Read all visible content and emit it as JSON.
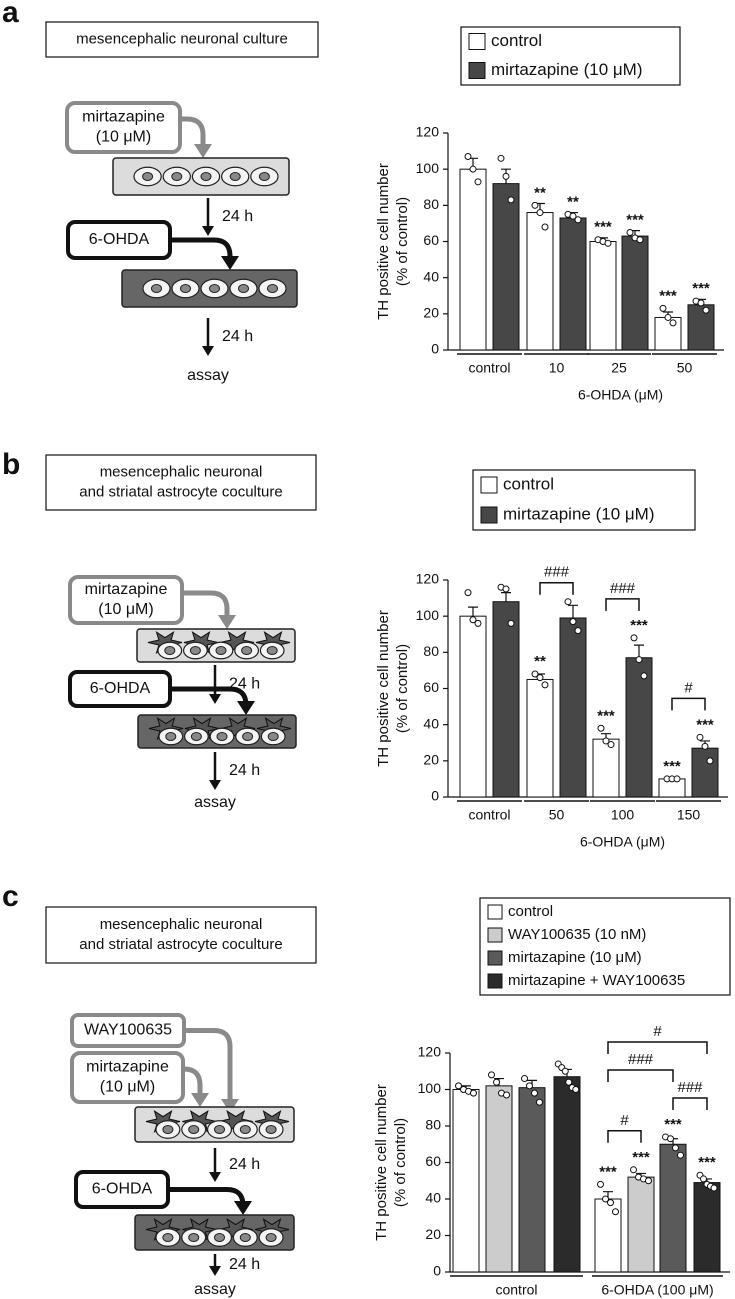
{
  "panels": [
    {
      "letter": "a",
      "culture": [
        "mesencephalic neuronal culture"
      ],
      "drug": [
        "mirtazapine",
        "(10 μM)"
      ],
      "toxin": "6-OHDA",
      "time1": "24 h",
      "time2": "24 h",
      "readout": "assay"
    },
    {
      "letter": "b",
      "culture": [
        "mesencephalic neuronal",
        "and striatal astrocyte coculture"
      ],
      "drug": [
        "mirtazapine",
        "(10 μM)"
      ],
      "toxin": "6-OHDA",
      "time1": "24 h",
      "time2": "24 h",
      "readout": "assay"
    },
    {
      "letter": "c",
      "culture": [
        "mesencephalic neuronal",
        "and striatal astrocyte coculture"
      ],
      "antagonist": "WAY100635",
      "drug": [
        "mirtazapine",
        "(10 μM)"
      ],
      "toxin": "6-OHDA",
      "time1": "24 h",
      "time2": "24 h",
      "readout": "assay"
    }
  ],
  "chart_data": [
    {
      "type": "bar",
      "ylabel": [
        "TH positive cell number",
        "(% of control)"
      ],
      "categories": [
        "control",
        "10",
        "25",
        "50"
      ],
      "group_label": "6-OHDA (μM)",
      "ylim": [
        0,
        120
      ],
      "yticks": [
        0,
        20,
        40,
        60,
        80,
        100,
        120
      ],
      "series": [
        {
          "name": "control",
          "color": "#ffffff",
          "values": [
            100,
            76,
            60,
            18
          ],
          "errors": [
            6,
            5,
            2,
            3
          ],
          "points": [
            [
              107,
              100,
              93
            ],
            [
              80,
              76,
              68
            ],
            [
              61,
              60,
              59
            ],
            [
              23,
              18,
              15
            ]
          ],
          "stars": [
            null,
            "**",
            "***",
            "***"
          ]
        },
        {
          "name": "mirtazapine (10 μM)",
          "color": "#474747",
          "values": [
            92,
            73,
            63,
            25
          ],
          "errors": [
            8,
            3,
            3,
            3
          ],
          "points": [
            [
              106,
              96,
              83
            ],
            [
              75,
              74,
              72
            ],
            [
              65,
              62,
              61
            ],
            [
              27,
              26,
              22
            ]
          ],
          "stars": [
            null,
            "**",
            "***",
            "***"
          ]
        }
      ],
      "brackets": []
    },
    {
      "type": "bar",
      "ylabel": [
        "TH positive cell number",
        "(% of control)"
      ],
      "categories": [
        "control",
        "50",
        "100",
        "150"
      ],
      "group_label": "6-OHDA (μM)",
      "ylim": [
        0,
        120
      ],
      "yticks": [
        0,
        20,
        40,
        60,
        80,
        100,
        120
      ],
      "series": [
        {
          "name": "control",
          "color": "#ffffff",
          "values": [
            100,
            65,
            32,
            10
          ],
          "errors": [
            5,
            3,
            3,
            1
          ],
          "points": [
            [
              113,
              98,
              96
            ],
            [
              68,
              66,
              62
            ],
            [
              38,
              31,
              29
            ],
            [
              10,
              10,
              10
            ]
          ],
          "stars": [
            null,
            "**",
            "***",
            "***"
          ]
        },
        {
          "name": "mirtazapine (10 μM)",
          "color": "#474747",
          "values": [
            108,
            99,
            77,
            27
          ],
          "errors": [
            5,
            7,
            7,
            4
          ],
          "points": [
            [
              116,
              115,
              96
            ],
            [
              108,
              97,
              92
            ],
            [
              88,
              76,
              67
            ],
            [
              33,
              28,
              20
            ]
          ],
          "stars": [
            null,
            null,
            "***",
            "***"
          ]
        }
      ],
      "brackets": [
        {
          "label": "###",
          "category": 1,
          "series": [
            0,
            1
          ]
        },
        {
          "label": "###",
          "category": 2,
          "series": [
            0,
            1
          ]
        },
        {
          "label": "#",
          "category": 3,
          "series": [
            0,
            1
          ]
        }
      ]
    },
    {
      "type": "bar",
      "ylabel": [
        "TH positive cell number",
        "(% of control)"
      ],
      "categories": [
        "control",
        "6-OHDA (100 μM)"
      ],
      "ylim": [
        0,
        120
      ],
      "yticks": [
        0,
        20,
        40,
        60,
        80,
        100,
        120
      ],
      "series": [
        {
          "name": "control",
          "color": "#ffffff",
          "values": [
            100,
            40
          ],
          "errors": [
            2,
            4
          ],
          "points": [
            [
              102,
              100,
              99,
              98
            ],
            [
              48,
              40,
              38,
              33
            ]
          ],
          "stars": [
            null,
            "***"
          ]
        },
        {
          "name": "WAY100635 (10 nM)",
          "color": "#cccccc",
          "values": [
            102,
            52
          ],
          "errors": [
            4,
            2
          ],
          "points": [
            [
              108,
              104,
              98,
              97
            ],
            [
              56,
              52,
              51,
              50
            ]
          ],
          "stars": [
            null,
            "***"
          ]
        },
        {
          "name": "mirtazapine (10 μM)",
          "color": "#5a5a5a",
          "values": [
            101,
            70
          ],
          "errors": [
            4,
            3
          ],
          "points": [
            [
              106,
              102,
              98,
              93
            ],
            [
              74,
              73,
              68,
              64
            ]
          ],
          "stars": [
            null,
            "***"
          ]
        },
        {
          "name": "mirtazapine + WAY100635",
          "color": "#2b2b2b",
          "values": [
            107,
            49
          ],
          "errors": [
            4,
            2
          ],
          "points": [
            [
              114,
              112,
              110,
              104,
              101,
              100
            ],
            [
              53,
              51,
              48,
              47,
              46
            ]
          ],
          "stars": [
            null,
            "***"
          ]
        }
      ],
      "brackets": [
        {
          "label": "#",
          "category": 1,
          "series": [
            0,
            1
          ]
        },
        {
          "label": "###",
          "category": 1,
          "series": [
            0,
            2
          ]
        },
        {
          "label": "###",
          "category": 1,
          "series": [
            2,
            3
          ]
        },
        {
          "label": "#",
          "category": 1,
          "series": [
            0,
            3
          ]
        }
      ]
    }
  ]
}
